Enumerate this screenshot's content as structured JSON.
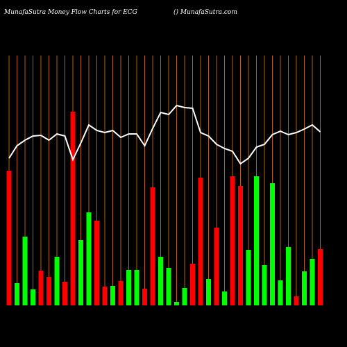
{
  "chart_data": {
    "type": "bar-line",
    "title": "MunafaSutra  Money Flow  Charts for ECG",
    "subtitle": "() MunafaSutra.com",
    "categories": [
      null,
      null,
      null,
      null,
      null,
      null,
      null,
      null,
      null,
      null,
      null,
      null,
      null,
      null,
      null,
      null,
      null,
      null,
      null,
      null,
      null,
      null,
      null,
      null,
      null,
      null,
      null,
      null,
      null,
      null,
      null,
      null,
      null,
      null,
      null,
      null,
      null,
      null,
      null,
      null
    ],
    "series": [
      {
        "kind": "bar",
        "values": [
          194,
          32,
          99,
          23,
          50,
          41,
          70,
          34,
          279,
          94,
          134,
          122,
          27,
          28,
          35,
          51,
          51,
          24,
          170,
          70,
          54,
          5,
          25,
          60,
          184,
          38,
          112,
          20,
          186,
          172,
          80,
          186,
          58,
          176,
          36,
          84,
          13,
          49,
          67,
          81
        ],
        "colors": [
          "#ff0000",
          "#00ff00",
          "#00ff00",
          "#00ff00",
          "#ff0000",
          "#ff0000",
          "#00ff00",
          "#ff0000",
          "#ff0000",
          "#00ff00",
          "#00ff00",
          "#ff0000",
          "#ff0000",
          "#00ff00",
          "#ff0000",
          "#00ff00",
          "#00ff00",
          "#ff0000",
          "#ff0000",
          "#00ff00",
          "#00ff00",
          "#00ff00",
          "#00ff00",
          "#ff0000",
          "#ff0000",
          "#00ff00",
          "#ff0000",
          "#00ff00",
          "#ff0000",
          "#ff0000",
          "#00ff00",
          "#00ff00",
          "#00ff00",
          "#00ff00",
          "#00ff00",
          "#00ff00",
          "#ff0000",
          "#00ff00",
          "#00ff00",
          "#ff0000"
        ]
      },
      {
        "kind": "line",
        "color": "#ffffff",
        "values": [
          212,
          230,
          238,
          244,
          245,
          238,
          247,
          244,
          210,
          234,
          260,
          252,
          249,
          252,
          242,
          247,
          247,
          230,
          255,
          278,
          275,
          288,
          285,
          284,
          249,
          244,
          232,
          226,
          222,
          204,
          212,
          228,
          232,
          246,
          251,
          246,
          249,
          254,
          260,
          250
        ]
      }
    ],
    "grid_color": "#b8600a"
  }
}
